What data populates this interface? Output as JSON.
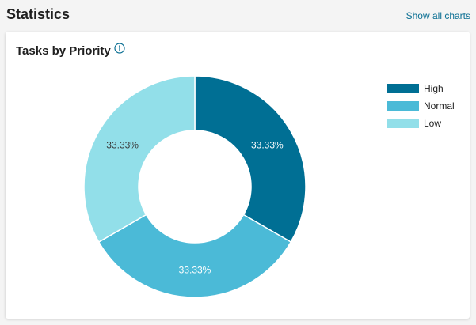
{
  "header": {
    "title": "Statistics",
    "show_all_label": "Show all charts"
  },
  "card": {
    "title": "Tasks by Priority",
    "info_icon": "info-icon"
  },
  "chart_data": {
    "type": "pie",
    "donut": true,
    "title": "Tasks by Priority",
    "categories": [
      "High",
      "Normal",
      "Low"
    ],
    "values": [
      33.33,
      33.33,
      33.33
    ],
    "labels": [
      "33.33%",
      "33.33%",
      "33.33%"
    ],
    "colors": [
      "#006f94",
      "#4bbad7",
      "#92dfe9"
    ],
    "label_colors": [
      "#ffffff",
      "#ffffff",
      "#3a3a3a"
    ],
    "legend_position": "right"
  }
}
